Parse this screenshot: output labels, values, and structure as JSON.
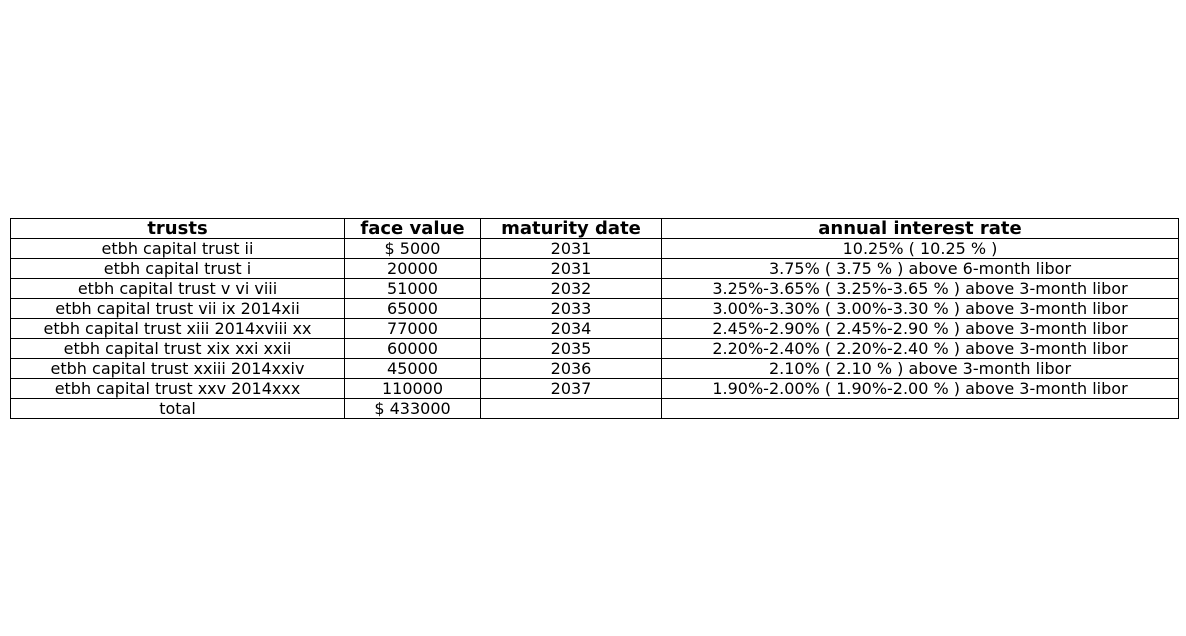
{
  "table": {
    "headers": [
      "trusts",
      "face value",
      "maturity date",
      "annual interest rate"
    ],
    "rows": [
      [
        "etbh capital trust ii",
        "$ 5000",
        "2031",
        "10.25% ( 10.25 % )"
      ],
      [
        "etbh capital trust i",
        "20000",
        "2031",
        "3.75% ( 3.75 % ) above 6-month libor"
      ],
      [
        "etbh capital trust v vi viii",
        "51000",
        "2032",
        "3.25%-3.65% ( 3.25%-3.65 % ) above 3-month libor"
      ],
      [
        "etbh capital trust vii ix 2014xii",
        "65000",
        "2033",
        "3.00%-3.30% ( 3.00%-3.30 % ) above 3-month libor"
      ],
      [
        "etbh capital trust xiii 2014xviii xx",
        "77000",
        "2034",
        "2.45%-2.90% ( 2.45%-2.90 % ) above 3-month libor"
      ],
      [
        "etbh capital trust xix xxi xxii",
        "60000",
        "2035",
        "2.20%-2.40% ( 2.20%-2.40 % ) above 3-month libor"
      ],
      [
        "etbh capital trust xxiii 2014xxiv",
        "45000",
        "2036",
        "2.10% ( 2.10 % ) above 3-month libor"
      ],
      [
        "etbh capital trust xxv 2014xxx",
        "110000",
        "2037",
        "1.90%-2.00% ( 1.90%-2.00 % ) above 3-month libor"
      ],
      [
        "total",
        "$ 433000",
        "",
        ""
      ]
    ]
  }
}
